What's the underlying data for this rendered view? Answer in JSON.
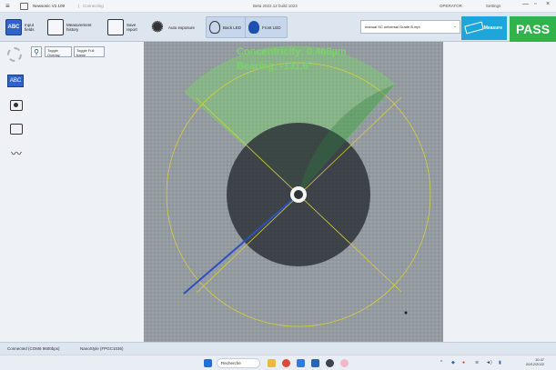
{
  "titlebar": {
    "app_name": "Newsonic V2.109",
    "separator": "|",
    "crumb": "Connecting",
    "build": "Beta 2022.12 build 1023",
    "operator": "OPERATOR",
    "settings": "Settings",
    "minimize": "—",
    "maximize": "▫",
    "close": "×"
  },
  "toolbar": {
    "input_fields": "Input fields",
    "measurement_history": "Measurement history",
    "save_report": "Save report",
    "auto_exposure": "Auto exposure",
    "back_led": "Back LED",
    "front_led": "Front LED",
    "fiber_select": "manual SC universal Grade B.mpi",
    "measure": "Measure",
    "result": "PASS"
  },
  "subtools": {
    "toggle_overlay": "Toggle Overlay",
    "toggle_full_frame": "Toggle Full frame"
  },
  "sidebar": {
    "abc_label": "ABC"
  },
  "view": {
    "concentricity_label": "Concentricity: 0.468µm",
    "bearing_label": "Bearing: -131.6°"
  },
  "statusbar": {
    "camera": "Connected (COM6 9600bps)",
    "port": "NanoStyle (FPGC1036)"
  },
  "taskbar": {
    "search": "Recherche",
    "time": "10:47",
    "date": "20/12/2022"
  },
  "colors": {
    "pass": "#2fb34a",
    "measure": "#1fa5d9",
    "overlay_green": "#7ad36b",
    "bearing_line": "#2d4fbf",
    "guide_circle": "#d8cf3a"
  }
}
